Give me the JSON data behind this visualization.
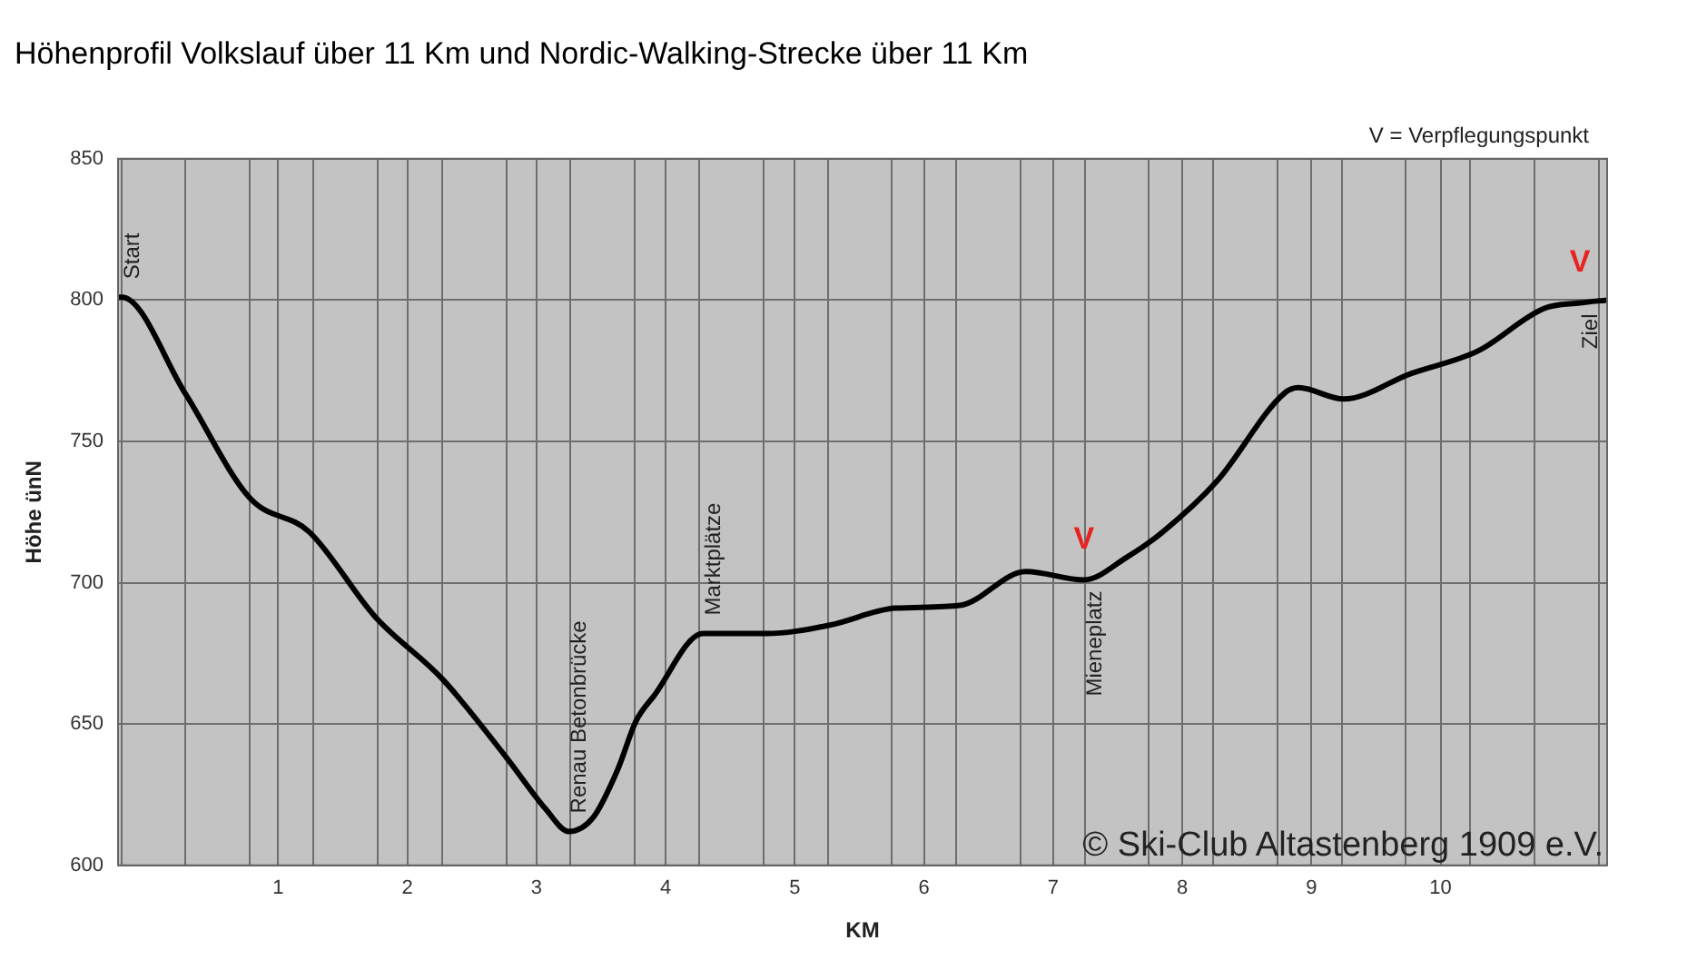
{
  "chart_data": {
    "type": "line",
    "title": "Höhenprofil Volkslauf über 11 Km und Nordic-Walking-Strecke über 11 Km",
    "xlabel": "KM",
    "ylabel": "Höhe ünN",
    "xlim": [
      -0.24,
      11.29
    ],
    "xticks": [
      {
        "value": -0.21,
        "label": null
      },
      {
        "value": 0.28,
        "label": null
      },
      {
        "value": 0.78,
        "label": null
      },
      1,
      {
        "value": 1.27,
        "label": null
      },
      {
        "value": 1.77,
        "label": null
      },
      2,
      {
        "value": 2.27,
        "label": null
      },
      {
        "value": 2.77,
        "label": null
      },
      3,
      {
        "value": 3.26,
        "label": null
      },
      {
        "value": 3.76,
        "label": null
      },
      4,
      {
        "value": 4.26,
        "label": null
      },
      {
        "value": 4.76,
        "label": null
      },
      5,
      {
        "value": 5.26,
        "label": null
      },
      {
        "value": 5.75,
        "label": null
      },
      6,
      {
        "value": 6.25,
        "label": null
      },
      {
        "value": 6.75,
        "label": null
      },
      7,
      {
        "value": 7.25,
        "label": null
      },
      {
        "value": 7.74,
        "label": null
      },
      8,
      {
        "value": 8.24,
        "label": null
      },
      {
        "value": 8.74,
        "label": null
      },
      9,
      {
        "value": 9.24,
        "label": null
      },
      {
        "value": 9.73,
        "label": null
      },
      10,
      {
        "value": 10.23,
        "label": null
      },
      {
        "value": 10.73,
        "label": null
      },
      {
        "value": 11.23,
        "label": null
      }
    ],
    "ylim": [
      600,
      850
    ],
    "yticks": [
      600,
      650,
      700,
      750,
      800,
      850
    ],
    "grid": true,
    "legend": false,
    "marker": "none",
    "line_style": "solid",
    "series": [
      {
        "color": "#000000",
        "x": [
          -0.24,
          -0.21,
          0.28,
          0.78,
          1.24,
          1.75,
          2.27,
          2.77,
          3.07,
          3.25,
          3.44,
          3.63,
          3.77,
          3.91,
          4.29,
          4.78,
          5.27,
          5.78,
          6.28,
          6.79,
          7.24,
          7.57,
          7.85,
          8.27,
          8.79,
          8.9,
          9.25,
          9.77,
          10.29,
          10.8,
          11.08,
          11.29
        ],
        "values": [
          801,
          801,
          767,
          730,
          718,
          688,
          666,
          638,
          620,
          612,
          617,
          634,
          651,
          660,
          682,
          682,
          685,
          691,
          692,
          704,
          701,
          709,
          718,
          736,
          767,
          769,
          765,
          774,
          782,
          797,
          799,
          800
        ]
      }
    ],
    "annotations": [
      {
        "text": "Start",
        "x": -0.21,
        "y": 801
      },
      {
        "text": "Renau Betonbrücke",
        "x": 3.25,
        "y": 612
      },
      {
        "text": "Marktplätze",
        "x": 4.29,
        "y": 682
      },
      {
        "text": "Mieneplatz",
        "x": 7.24,
        "y": 701
      },
      {
        "text": "Ziel",
        "x": 11.08,
        "y": 799
      },
      {
        "text": "V",
        "x": 7.24,
        "y": 701
      },
      {
        "text": "V",
        "x": 11.08,
        "y": 799
      },
      "V = Verpflegungspunkt",
      "© Ski-Club Altastenberg 1909 e.V."
    ]
  }
}
